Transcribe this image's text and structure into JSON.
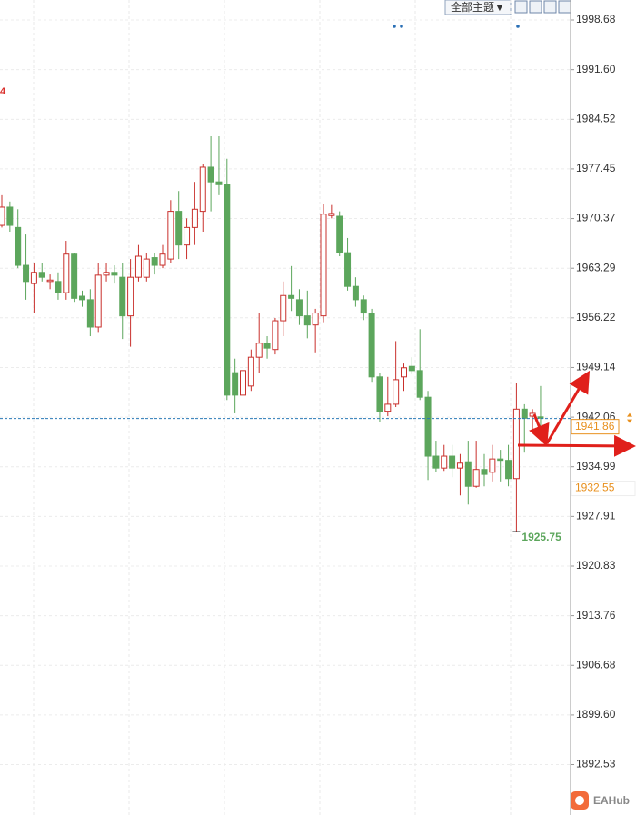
{
  "toolbar": {
    "theme_button": "全部主题▼"
  },
  "watermark": "EAHub",
  "chart_data": {
    "type": "candlestick",
    "left_label": "4",
    "open": [
      1969.4,
      1972.0,
      1969.1,
      1963.7,
      1961.1,
      1962.7,
      1961.4,
      1961.4,
      1959.8,
      1965.3,
      1959.3,
      1958.8,
      1954.9,
      1962.3,
      1962.7,
      1962.0,
      1956.5,
      1962.0,
      1962.0,
      1964.8,
      1963.7,
      1964.6,
      1971.4,
      1966.6,
      1969.1,
      1971.4,
      1977.7,
      1975.6,
      1975.2,
      1948.4,
      1945.2,
      1946.5,
      1950.6,
      1952.6,
      1951.7,
      1955.8,
      1959.4,
      1958.8,
      1956.5,
      1955.2,
      1956.5,
      1970.8,
      1970.7,
      1965.5,
      1960.7,
      1958.8,
      1956.9,
      1947.8,
      1942.9,
      1943.9,
      1947.8,
      1949.3,
      1948.7,
      1944.9,
      1936.5,
      1934.8,
      1936.5,
      1934.8,
      1935.7,
      1932.2,
      1934.6,
      1934.2,
      1936.1,
      1935.9,
      1933.3,
      1943.2,
      1942.2,
      1942.1
    ],
    "high": [
      1973.7,
      1972.8,
      1971.7,
      1968.1,
      1964.0,
      1964.0,
      1962.4,
      1962.7,
      1967.2,
      1965.5,
      1960.1,
      1960.3,
      1964.0,
      1964.0,
      1963.7,
      1964.0,
      1964.6,
      1966.6,
      1965.5,
      1965.5,
      1966.6,
      1973.0,
      1974.3,
      1970.4,
      1975.6,
      1978.2,
      1982.1,
      1982.1,
      1978.9,
      1950.4,
      1949.7,
      1951.7,
      1956.9,
      1953.6,
      1956.2,
      1961.4,
      1963.6,
      1960.3,
      1960.1,
      1957.5,
      1972.4,
      1972.3,
      1971.4,
      1967.6,
      1962.0,
      1959.4,
      1957.5,
      1948.4,
      1947.8,
      1952.9,
      1949.7,
      1950.6,
      1954.6,
      1945.8,
      1938.7,
      1938.1,
      1938.1,
      1936.8,
      1938.7,
      1938.7,
      1936.8,
      1938.1,
      1937.4,
      1938.1,
      1946.9,
      1943.9,
      1943.2,
      1946.5
    ],
    "low": [
      1969.1,
      1968.5,
      1963.3,
      1958.8,
      1956.9,
      1961.4,
      1960.3,
      1958.8,
      1958.8,
      1958.5,
      1957.8,
      1953.6,
      1954.2,
      1961.4,
      1961.1,
      1953.2,
      1952.1,
      1961.4,
      1961.4,
      1962.4,
      1963.3,
      1964.0,
      1964.6,
      1964.6,
      1966.6,
      1968.5,
      1971.4,
      1973.7,
      1944.5,
      1942.6,
      1943.9,
      1945.8,
      1948.4,
      1950.4,
      1951.0,
      1953.6,
      1957.2,
      1955.2,
      1953.3,
      1951.3,
      1955.6,
      1970.4,
      1965.0,
      1960.1,
      1957.8,
      1955.9,
      1947.1,
      1941.3,
      1942.2,
      1943.5,
      1945.8,
      1948.2,
      1944.5,
      1933.1,
      1934.2,
      1934.4,
      1933.5,
      1930.9,
      1929.6,
      1932.0,
      1932.2,
      1932.9,
      1932.9,
      1932.2,
      1925.75,
      1937.0,
      1940.0,
      1939.4
    ],
    "close": [
      1972.0,
      1969.4,
      1963.7,
      1961.4,
      1962.7,
      1962.0,
      1961.6,
      1959.8,
      1965.3,
      1959.0,
      1958.8,
      1954.9,
      1962.3,
      1962.7,
      1962.3,
      1956.5,
      1962.0,
      1965.0,
      1964.6,
      1963.7,
      1965.3,
      1971.4,
      1966.6,
      1969.1,
      1971.7,
      1977.7,
      1975.6,
      1975.2,
      1945.2,
      1945.2,
      1948.7,
      1950.6,
      1952.6,
      1951.9,
      1955.8,
      1959.4,
      1959.0,
      1956.5,
      1955.2,
      1956.9,
      1971.0,
      1971.1,
      1965.5,
      1960.7,
      1958.8,
      1956.9,
      1947.8,
      1942.9,
      1943.9,
      1947.4,
      1949.1,
      1948.7,
      1944.9,
      1936.5,
      1934.8,
      1936.5,
      1934.8,
      1935.5,
      1932.2,
      1934.6,
      1933.9,
      1936.1,
      1935.9,
      1933.3,
      1943.2,
      1941.9,
      1942.6,
      1941.9
    ],
    "up_color": "#c9302c",
    "down_color": "#5ca65c",
    "ylim": [
      1885.34,
      2001.53
    ],
    "yticks": [
      1998.68,
      {
        "value": 1991.6,
        "label": "1991.60"
      },
      1984.52,
      1977.45,
      1970.37,
      1963.29,
      1956.22,
      1949.14,
      1942.06,
      1934.99,
      1927.91,
      1920.83,
      1913.76,
      1906.68,
      {
        "value": 1899.6,
        "label": "1899.60"
      },
      1892.53
    ],
    "grid": true,
    "price_line": 1941.86,
    "price_tag_2": 1932.55,
    "low_label": 1925.75
  }
}
